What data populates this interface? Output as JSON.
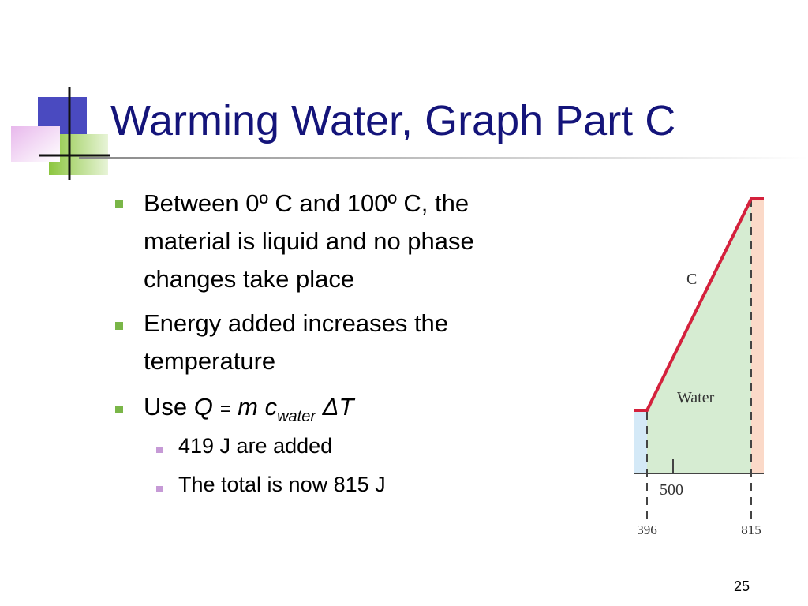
{
  "title": "Warming Water, Graph Part C",
  "bullets": [
    {
      "text": "Between 0º C and 100º C, the material is liquid and no phase changes take place"
    },
    {
      "text": "Energy added increases the temperature"
    },
    {
      "parts": [
        "Use",
        "Q",
        "=",
        "m",
        "c",
        "water",
        "ΔT"
      ],
      "subbullets": [
        "419 J are added",
        "The total is now 815 J"
      ]
    }
  ],
  "figure": {
    "phase_label": "C",
    "region_label": "Water",
    "tick_label": "500",
    "start_label": "396",
    "end_label": "815"
  },
  "slide_number": "25"
}
